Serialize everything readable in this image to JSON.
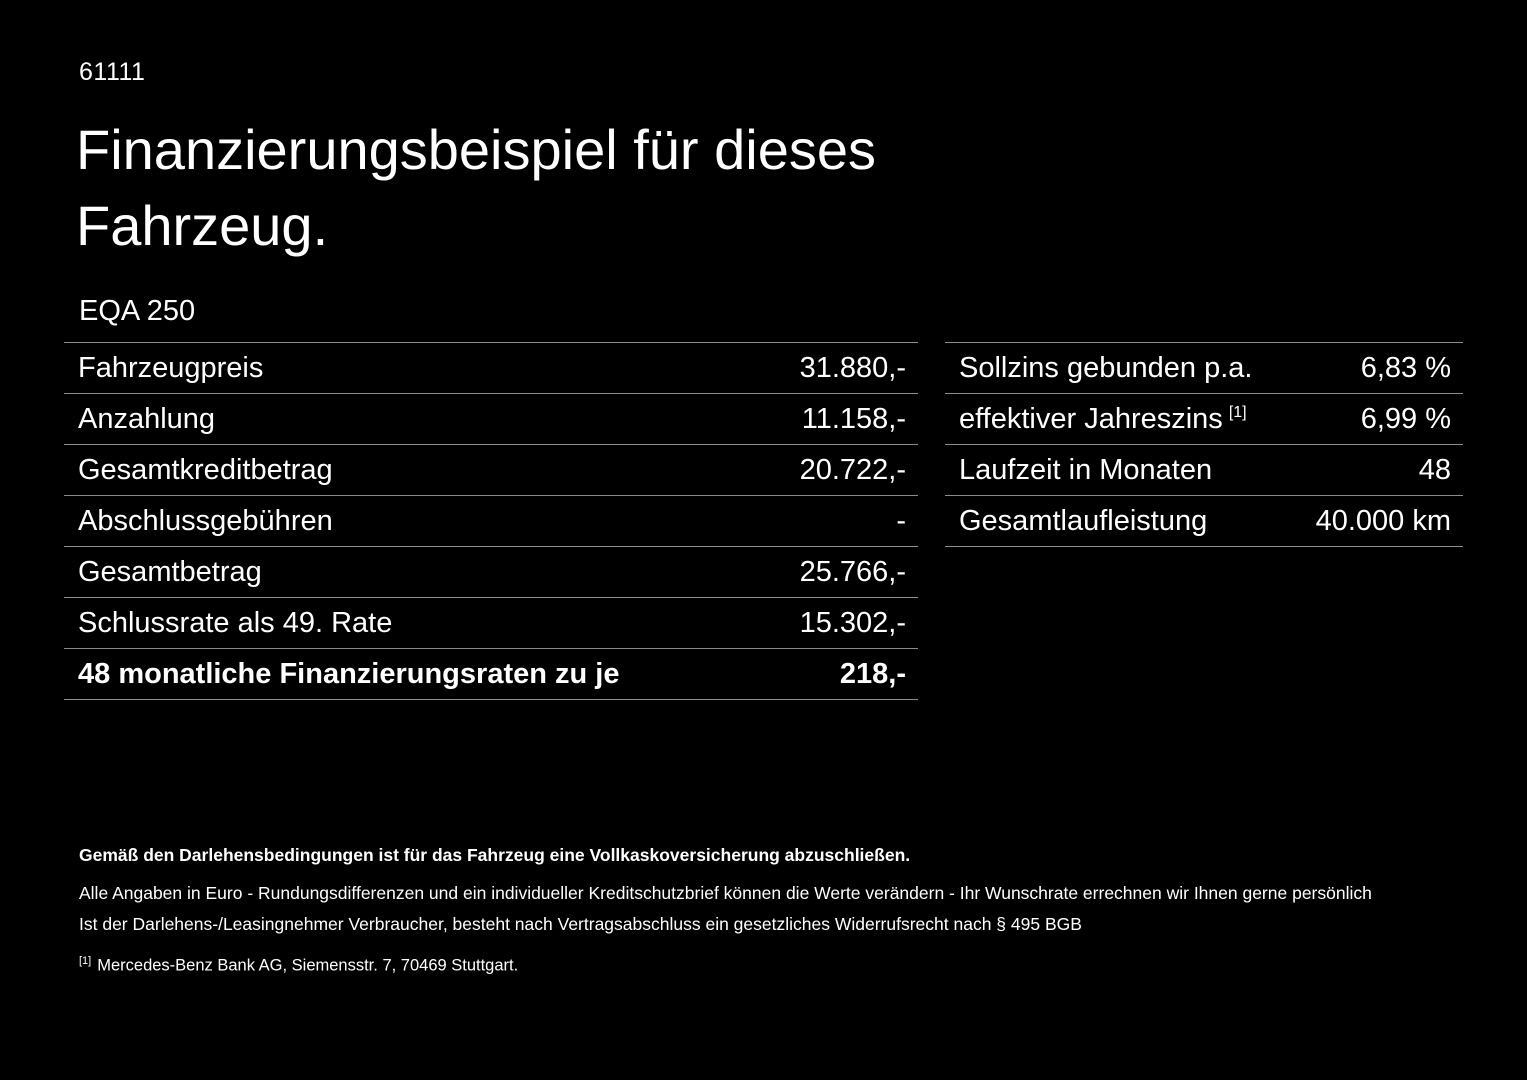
{
  "colors": {
    "background": "#000000",
    "text": "#ffffff",
    "divider": "#8c8c8c"
  },
  "header": {
    "document_number": "61111",
    "title": "Finanzierungsbeispiel für dieses Fahrzeug.",
    "model": "EQA 250"
  },
  "left_table": {
    "rows": [
      {
        "label": "Fahrzeugpreis",
        "value": "31.880,-"
      },
      {
        "label": "Anzahlung",
        "value": "11.158,-"
      },
      {
        "label": "Gesamtkreditbetrag",
        "value": "20.722,-"
      },
      {
        "label": "Abschlussgebühren",
        "value": "-"
      },
      {
        "label": "Gesamtbetrag",
        "value": "25.766,-"
      },
      {
        "label": "Schlussrate als 49. Rate",
        "value": "15.302,-"
      },
      {
        "label": "48 monatliche Finanzierungsraten zu je",
        "value": "218,-"
      }
    ]
  },
  "right_table": {
    "rows": [
      {
        "label": "Sollzins gebunden p.a.",
        "value": "6,83 %"
      },
      {
        "label": "effektiver Jahreszins",
        "sup": "[1]",
        "value": "6,99 %"
      },
      {
        "label": "Laufzeit in Monaten",
        "value": "48"
      },
      {
        "label": "Gesamtlaufleistung",
        "value": "40.000 km"
      }
    ]
  },
  "footer": {
    "insurance_note": "Gemäß den Darlehensbedingungen ist für das Fahrzeug eine Vollkaskoversicherung abzuschließen.",
    "disclaimer_1": "Alle Angaben in Euro - Rundungsdifferenzen und ein individueller Kreditschutzbrief können die Werte verändern - Ihr Wunschrate errechnen wir Ihnen gerne persönlich",
    "disclaimer_2": "Ist der Darlehens-/Leasingnehmer Verbraucher, besteht nach Vertragsabschluss ein gesetzliches Widerrufsrecht nach § 495 BGB",
    "footnote_ref": "[1]",
    "footnote_text": "Mercedes-Benz Bank AG, Siemensstr. 7, 70469 Stuttgart."
  }
}
